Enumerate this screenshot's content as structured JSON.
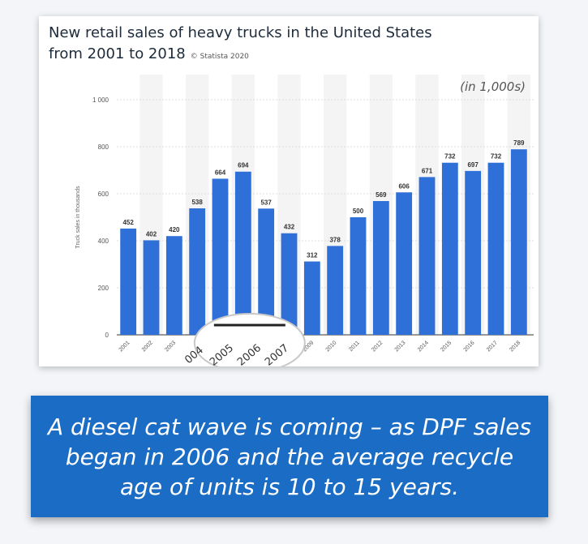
{
  "chart_data": {
    "type": "bar",
    "title": "New retail sales of heavy trucks in the United States from 2001 to 2018",
    "title_line1": "New retail sales of heavy trucks in the United States",
    "title_line2": "from 2001 to 2018",
    "credit": "© Statista 2020",
    "unit_note": "(in 1,000s)",
    "ylabel": "Truck sales in thousands",
    "xlabel": "",
    "ylim": [
      0,
      1000
    ],
    "yticks": [
      0,
      200,
      400,
      600,
      800,
      1000
    ],
    "ytick_labels": [
      "0",
      "200",
      "400",
      "600",
      "800",
      "1 000"
    ],
    "categories": [
      "2001",
      "2002",
      "2003",
      "2004",
      "2005",
      "2006",
      "2007",
      "2008",
      "2009",
      "2010",
      "2011",
      "2012",
      "2013",
      "2014",
      "2015",
      "2016",
      "2017",
      "2018"
    ],
    "values": [
      452,
      402,
      420,
      538,
      664,
      694,
      537,
      432,
      312,
      378,
      500,
      569,
      606,
      671,
      732,
      697,
      732,
      789
    ],
    "highlighted_categories": [
      "2005",
      "2006",
      "2007"
    ],
    "highlight_labels": [
      "004",
      "2005",
      "2006",
      "2007"
    ],
    "bar_color": "#2f6fd8",
    "grid": true,
    "legend": "none"
  },
  "banner": {
    "text": "A diesel cat wave is coming – as DPF sales began in 2006 and the average recycle age of units is 10 to 15 years.",
    "color": "#1a6cc4"
  }
}
